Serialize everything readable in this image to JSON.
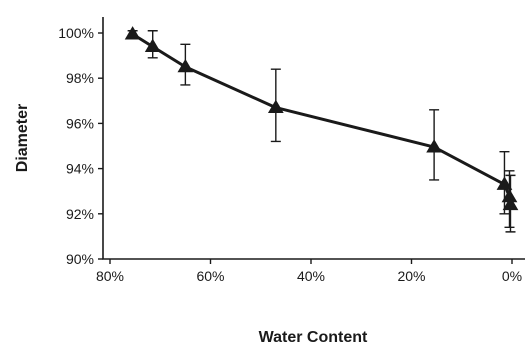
{
  "chart_data": {
    "type": "line",
    "xlabel": "Water Content",
    "ylabel": "Diameter",
    "xlim": [
      80,
      0
    ],
    "ylim": [
      90,
      100
    ],
    "x_ticks": [
      {
        "value": 80,
        "label": "80%"
      },
      {
        "value": 60,
        "label": "60%"
      },
      {
        "value": 40,
        "label": "40%"
      },
      {
        "value": 20,
        "label": "20%"
      },
      {
        "value": 0,
        "label": "0%"
      }
    ],
    "y_ticks": [
      {
        "value": 90,
        "label": "90%"
      },
      {
        "value": 92,
        "label": "92%"
      },
      {
        "value": 94,
        "label": "94%"
      },
      {
        "value": 96,
        "label": "96%"
      },
      {
        "value": 98,
        "label": "98%"
      },
      {
        "value": 100,
        "label": "100%"
      }
    ],
    "grid": false,
    "series": [
      {
        "marker": "triangle",
        "color": "#1a1a1a",
        "points": [
          {
            "x": 75.5,
            "y": 99.95,
            "err_low": 99.8,
            "err_high": 100.1
          },
          {
            "x": 71.5,
            "y": 99.4,
            "err_low": 98.9,
            "err_high": 100.1
          },
          {
            "x": 65,
            "y": 98.5,
            "err_low": 97.7,
            "err_high": 99.5
          },
          {
            "x": 47,
            "y": 96.7,
            "err_low": 95.2,
            "err_high": 98.4
          },
          {
            "x": 15.5,
            "y": 94.95,
            "err_low": 93.5,
            "err_high": 96.6
          },
          {
            "x": 1.5,
            "y": 93.3,
            "err_low": 92.0,
            "err_high": 94.75
          },
          {
            "x": 0.5,
            "y": 92.75,
            "err_low": 91.4,
            "err_high": 93.9
          },
          {
            "x": 0.3,
            "y": 92.4,
            "err_low": 91.2,
            "err_high": 93.7
          }
        ]
      }
    ]
  }
}
